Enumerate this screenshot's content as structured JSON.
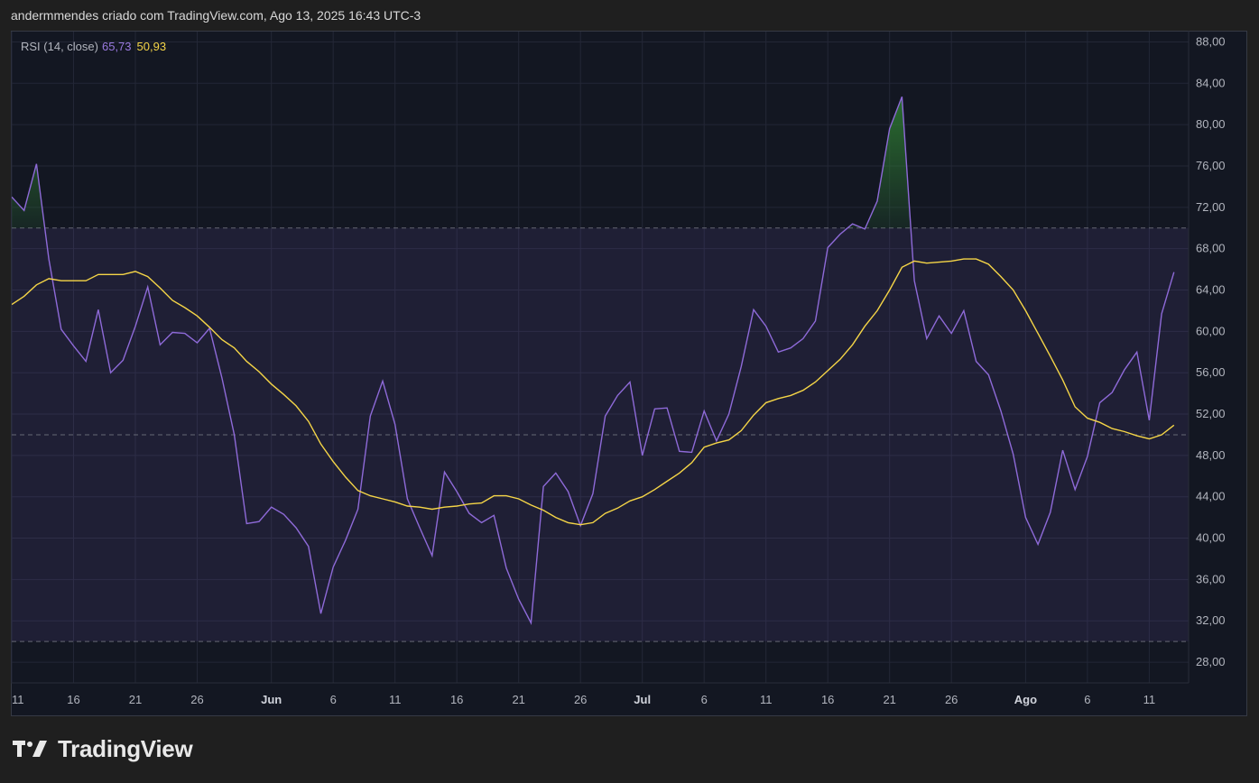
{
  "header": {
    "attribution": "andermmendes criado com TradingView.com, Ago 13, 2025 16:43 UTC-3"
  },
  "legend": {
    "indicator": "RSI (14, close)",
    "rsi_value": "65,73",
    "ma_value": "50,93"
  },
  "brand": {
    "name": "TradingView",
    "icon": "tradingview-logo-icon"
  },
  "colors": {
    "rsi": "#8e6ad8",
    "ma": "#f5d547",
    "band": "#7e57c2",
    "overbought_fill": "#2e7d32",
    "grid": "#232736",
    "background": "#131722"
  },
  "chart_data": {
    "type": "line",
    "ylim": [
      26,
      89
    ],
    "y_ticks": [
      "88,00",
      "84,00",
      "80,00",
      "76,00",
      "72,00",
      "68,00",
      "64,00",
      "60,00",
      "56,00",
      "52,00",
      "48,00",
      "44,00",
      "40,00",
      "36,00",
      "32,00",
      "28,00"
    ],
    "x_ticks": [
      {
        "label": "11",
        "major": false,
        "i": 0
      },
      {
        "label": "16",
        "major": false,
        "i": 5
      },
      {
        "label": "21",
        "major": false,
        "i": 10
      },
      {
        "label": "26",
        "major": false,
        "i": 15
      },
      {
        "label": "Jun",
        "major": true,
        "i": 21
      },
      {
        "label": "6",
        "major": false,
        "i": 26
      },
      {
        "label": "11",
        "major": false,
        "i": 31
      },
      {
        "label": "16",
        "major": false,
        "i": 36
      },
      {
        "label": "21",
        "major": false,
        "i": 41
      },
      {
        "label": "26",
        "major": false,
        "i": 46
      },
      {
        "label": "Jul",
        "major": true,
        "i": 51
      },
      {
        "label": "6",
        "major": false,
        "i": 56
      },
      {
        "label": "11",
        "major": false,
        "i": 61
      },
      {
        "label": "16",
        "major": false,
        "i": 66
      },
      {
        "label": "21",
        "major": false,
        "i": 71
      },
      {
        "label": "26",
        "major": false,
        "i": 76
      },
      {
        "label": "Ago",
        "major": true,
        "i": 82
      },
      {
        "label": "6",
        "major": false,
        "i": 87
      },
      {
        "label": "11",
        "major": false,
        "i": 92
      }
    ],
    "bands": {
      "upper": 70,
      "middle": 50,
      "lower": 30
    },
    "series": [
      {
        "values": [
          73.0,
          71.7,
          76.2,
          67.0,
          60.2,
          58.6,
          57.1,
          62.1,
          56.0,
          57.2,
          60.5,
          64.3,
          58.7,
          59.9,
          59.8,
          58.9,
          60.3,
          55.5,
          50.0,
          41.4,
          41.6,
          43.0,
          42.3,
          41.0,
          39.2,
          32.7,
          37.2,
          39.8,
          42.8,
          51.8,
          55.2,
          51.0,
          43.8,
          41.0,
          38.3,
          46.4,
          44.5,
          42.4,
          41.5,
          42.2,
          37.1,
          34.1,
          31.8,
          45.0,
          46.3,
          44.5,
          41.2,
          44.3,
          51.8,
          53.8,
          55.1,
          48.0,
          52.5,
          52.6,
          48.4,
          48.3,
          52.3,
          49.4,
          52.0,
          56.6,
          62.1,
          60.5,
          58.0,
          58.4,
          59.3,
          61.0,
          68.1,
          69.4,
          70.4,
          69.9,
          72.6,
          79.6,
          82.7,
          64.9,
          59.3,
          61.5,
          59.8,
          62.0,
          57.1,
          55.8,
          52.3,
          48.1,
          42.0,
          39.4,
          42.5,
          48.5,
          44.7,
          47.9,
          53.1,
          54.1,
          56.3,
          58.0,
          51.4,
          61.7,
          65.73
        ]
      },
      {
        "values": [
          62.6,
          63.4,
          64.5,
          65.1,
          64.9,
          64.9,
          64.9,
          65.5,
          65.5,
          65.5,
          65.8,
          65.3,
          64.2,
          63.0,
          62.3,
          61.5,
          60.4,
          59.2,
          58.4,
          57.1,
          56.1,
          54.9,
          53.9,
          52.8,
          51.3,
          49.1,
          47.4,
          45.9,
          44.6,
          44.1,
          43.8,
          43.5,
          43.1,
          43.0,
          42.8,
          43.0,
          43.1,
          43.3,
          43.4,
          44.1,
          44.1,
          43.8,
          43.2,
          42.7,
          42.0,
          41.5,
          41.3,
          41.5,
          42.4,
          42.9,
          43.6,
          44.0,
          44.7,
          45.5,
          46.3,
          47.3,
          48.8,
          49.2,
          49.5,
          50.4,
          51.9,
          53.1,
          53.5,
          53.8,
          54.3,
          55.1,
          56.2,
          57.3,
          58.7,
          60.5,
          62.0,
          64.0,
          66.2,
          66.8,
          66.6,
          66.7,
          66.8,
          67.0,
          67.0,
          66.5,
          65.3,
          64.0,
          62.0,
          59.8,
          57.6,
          55.3,
          52.7,
          51.6,
          51.2,
          50.6,
          50.3,
          49.9,
          49.6,
          50.0,
          50.93
        ]
      }
    ]
  }
}
